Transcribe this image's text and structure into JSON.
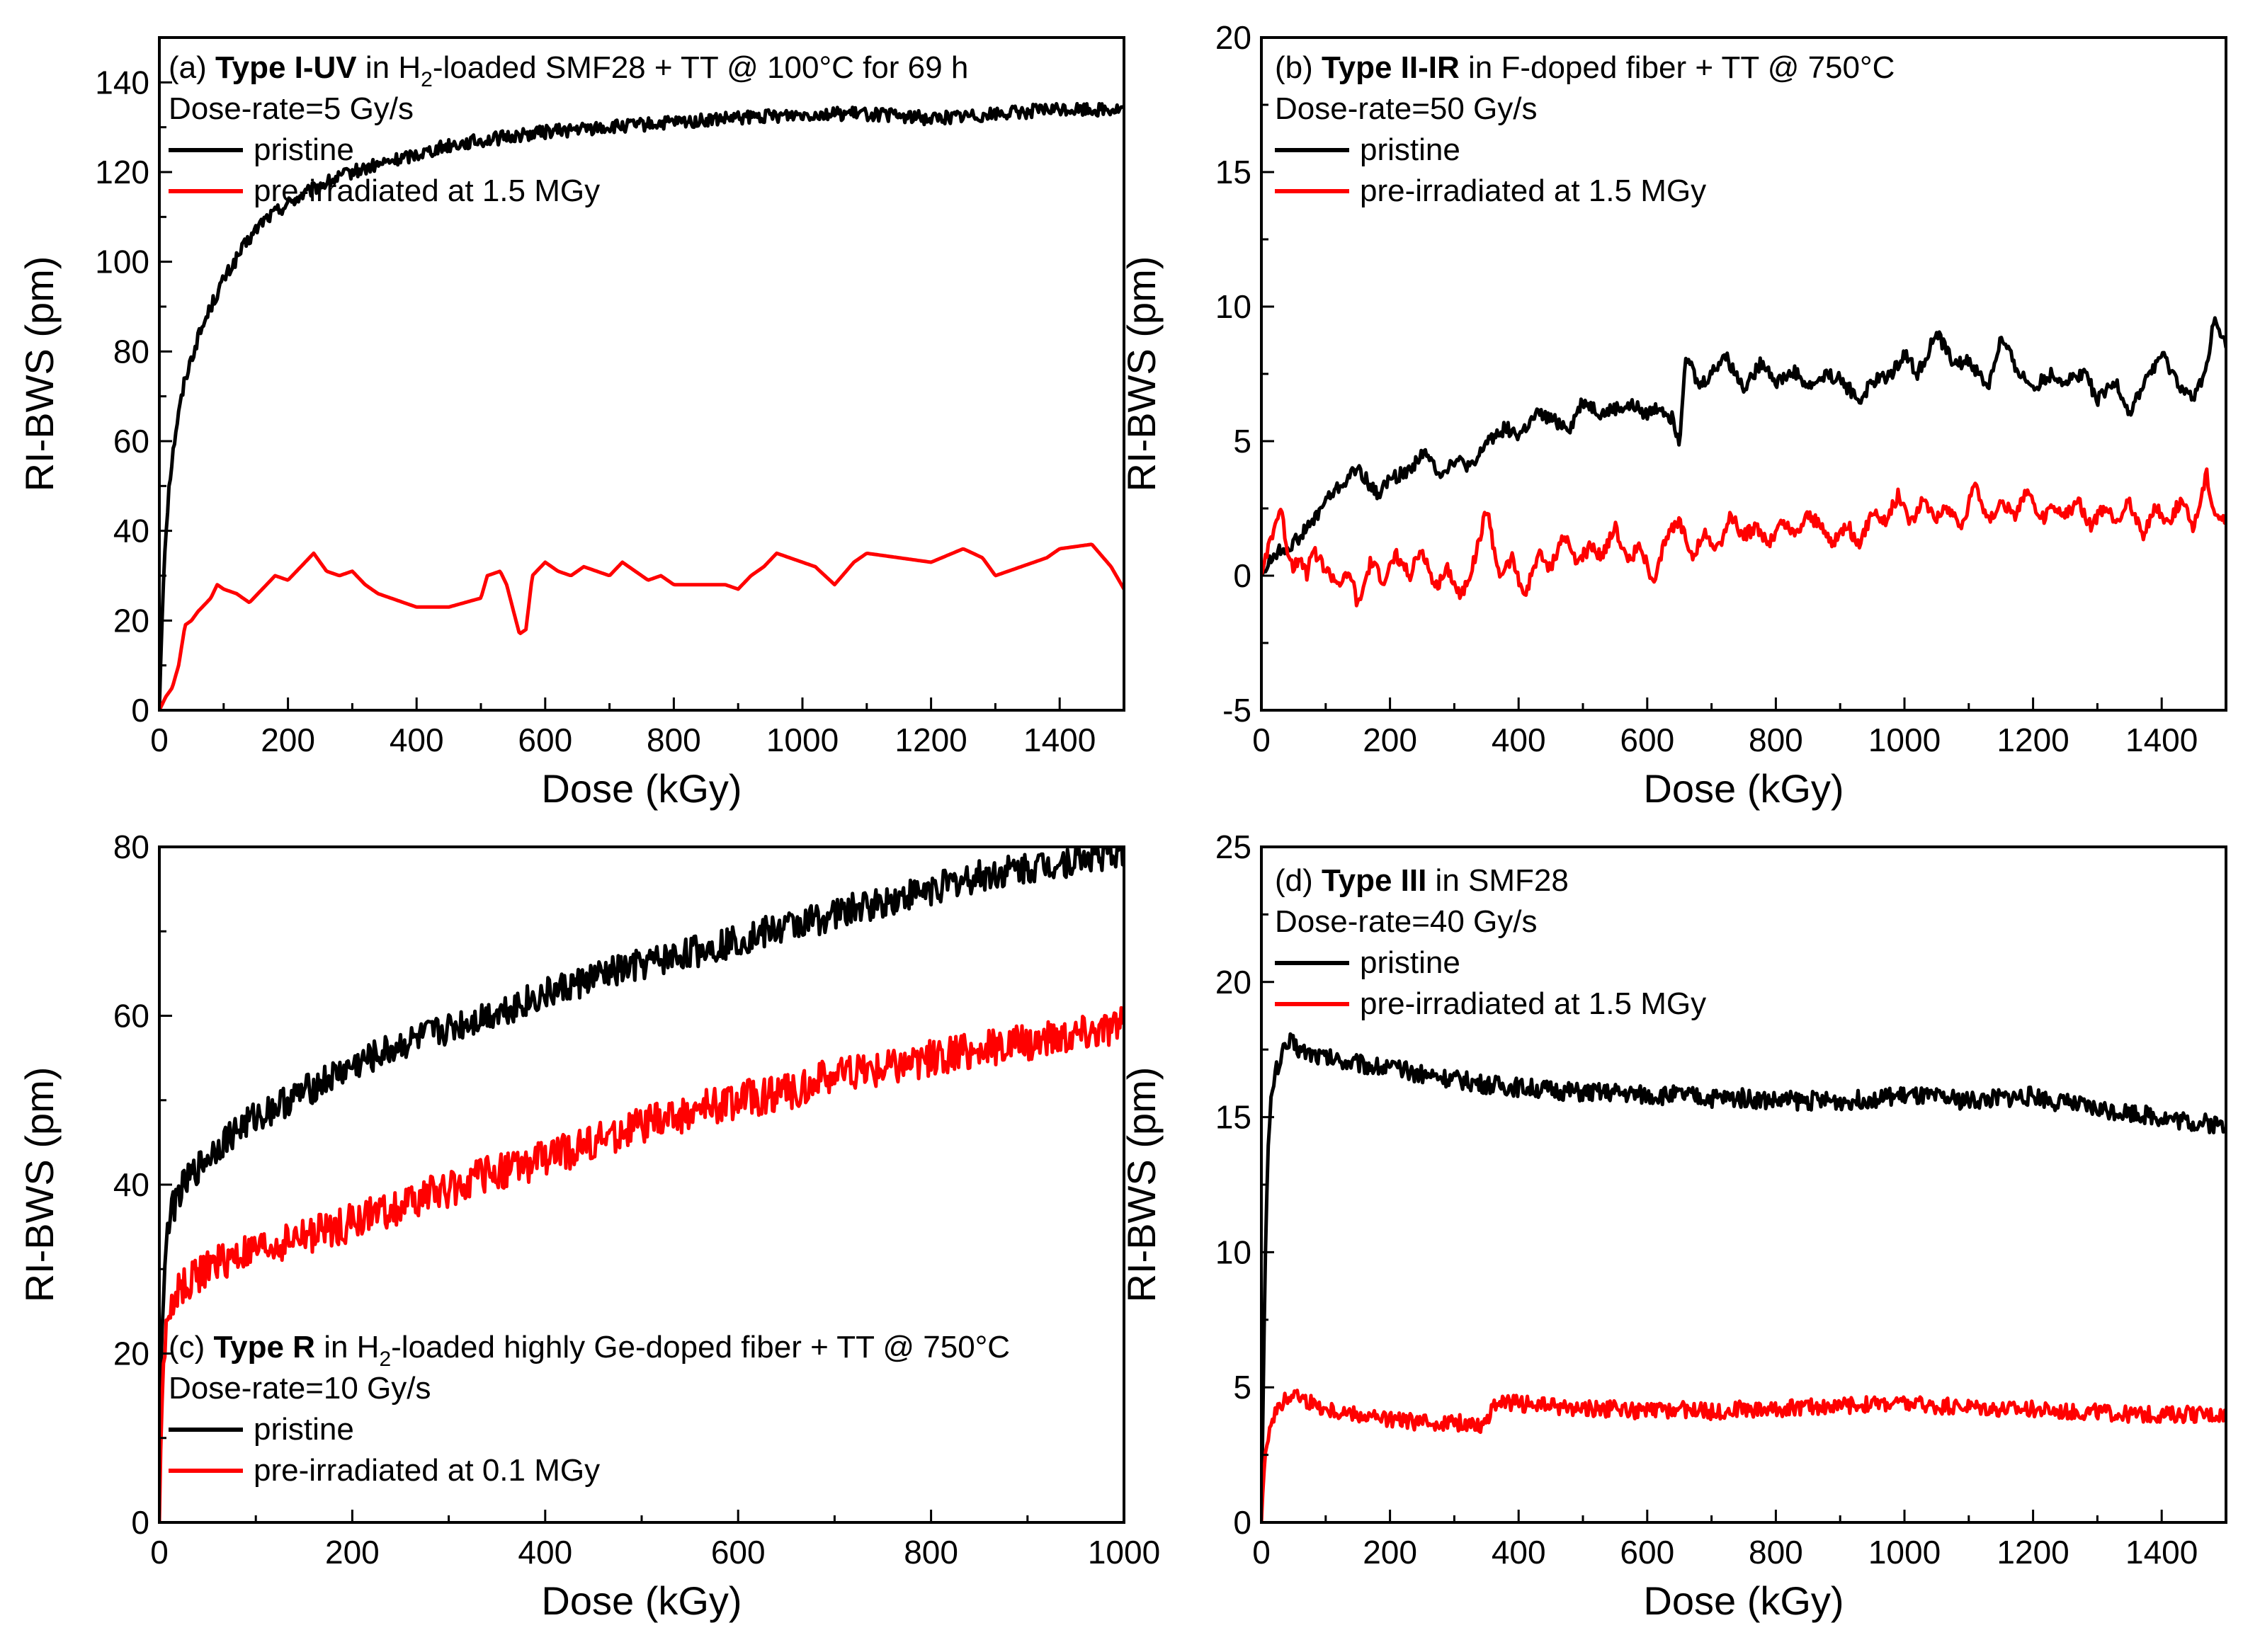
{
  "chart_data": [
    {
      "type": "line",
      "panel": "(a)",
      "title_bold": "Type I-UV",
      "title_rest_before_sub": "in H",
      "title_sub": "2",
      "title_rest_after_sub": "-loaded SMF28 + TT @ 100°C for 69 h",
      "dose_rate": "Dose-rate=5 Gy/s",
      "xlabel": "Dose (kGy)",
      "ylabel": "RI-BWS (pm)",
      "xlim": [
        0,
        1500
      ],
      "ylim": [
        0,
        150
      ],
      "xticks": [
        0,
        200,
        400,
        600,
        800,
        1000,
        1200,
        1400
      ],
      "yticks": [
        0,
        20,
        40,
        60,
        80,
        100,
        120,
        140
      ],
      "legend_position": "top-left",
      "series": [
        {
          "name": "pristine",
          "color": "#000000",
          "x": [
            0,
            3,
            8,
            15,
            25,
            40,
            60,
            80,
            100,
            130,
            160,
            200,
            250,
            300,
            350,
            400,
            450,
            500,
            600,
            700,
            800,
            900,
            1000,
            1100,
            1200,
            1300,
            1400,
            1500
          ],
          "y": [
            0,
            15,
            35,
            50,
            62,
            74,
            83,
            90,
            96,
            103,
            109,
            113,
            117,
            120,
            122,
            124,
            126,
            127,
            129,
            130,
            131,
            132,
            133,
            133,
            132,
            133,
            134,
            134
          ]
        },
        {
          "name": "pre-irradiated at 1.5 MGy",
          "color": "#ff0000",
          "x": [
            0,
            10,
            20,
            30,
            40,
            50,
            60,
            80,
            90,
            100,
            120,
            140,
            160,
            180,
            200,
            220,
            240,
            260,
            280,
            300,
            320,
            340,
            360,
            380,
            400,
            450,
            500,
            510,
            530,
            540,
            560,
            570,
            580,
            600,
            620,
            640,
            660,
            680,
            700,
            720,
            740,
            760,
            780,
            800,
            850,
            880,
            900,
            920,
            940,
            960,
            980,
            1000,
            1020,
            1050,
            1080,
            1100,
            1150,
            1200,
            1250,
            1280,
            1300,
            1340,
            1380,
            1400,
            1450,
            1480,
            1500
          ],
          "y": [
            0,
            3,
            5,
            10,
            19,
            20,
            22,
            25,
            28,
            27,
            26,
            24,
            27,
            30,
            29,
            32,
            35,
            31,
            30,
            31,
            28,
            26,
            25,
            24,
            23,
            23,
            25,
            30,
            31,
            28,
            17,
            18,
            30,
            33,
            31,
            30,
            32,
            31,
            30,
            33,
            31,
            29,
            30,
            28,
            28,
            28,
            27,
            30,
            32,
            35,
            34,
            33,
            32,
            28,
            33,
            35,
            34,
            33,
            36,
            34,
            30,
            32,
            34,
            36,
            37,
            32,
            27
          ]
        }
      ]
    },
    {
      "type": "line",
      "panel": "(b)",
      "title_bold": "Type II-IR",
      "title_rest": "in F-doped fiber + TT @ 750°C",
      "dose_rate": "Dose-rate=50 Gy/s",
      "xlabel": "Dose (kGy)",
      "ylabel": "RI-BWS (pm)",
      "xlim": [
        0,
        1500
      ],
      "ylim": [
        -5,
        20
      ],
      "xticks": [
        0,
        200,
        400,
        600,
        800,
        1000,
        1200,
        1400
      ],
      "yticks": [
        -5,
        0,
        5,
        10,
        15,
        20
      ],
      "legend_position": "top-left",
      "series": [
        {
          "name": "pristine",
          "color": "#000000",
          "x": [
            0,
            20,
            50,
            80,
            100,
            130,
            150,
            180,
            200,
            230,
            250,
            280,
            300,
            330,
            350,
            380,
            400,
            430,
            450,
            480,
            500,
            530,
            550,
            580,
            600,
            620,
            640,
            650,
            660,
            680,
            700,
            720,
            750,
            780,
            800,
            830,
            850,
            880,
            900,
            930,
            950,
            980,
            1000,
            1020,
            1050,
            1080,
            1100,
            1130,
            1150,
            1180,
            1200,
            1230,
            1250,
            1280,
            1300,
            1330,
            1350,
            1380,
            1400,
            1430,
            1450,
            1470,
            1480,
            1490,
            1500
          ],
          "y": [
            0,
            0.8,
            1.2,
            2.0,
            2.8,
            3.5,
            4.0,
            3.0,
            3.6,
            3.9,
            4.6,
            3.8,
            4.3,
            4.0,
            5.0,
            5.5,
            5.2,
            6.0,
            5.8,
            5.5,
            6.5,
            6.0,
            6.2,
            6.3,
            6.0,
            6.3,
            5.8,
            5.0,
            8.3,
            7.0,
            7.5,
            8.2,
            7.0,
            8.0,
            7.2,
            7.6,
            7.0,
            7.5,
            7.3,
            6.5,
            7.2,
            7.5,
            8.3,
            7.5,
            9.0,
            7.8,
            8.0,
            7.0,
            8.8,
            7.5,
            7.0,
            7.5,
            7.2,
            7.6,
            6.5,
            7.2,
            6.0,
            7.5,
            8.2,
            7.0,
            6.5,
            7.8,
            9.5,
            9.0,
            8.5
          ]
        },
        {
          "name": "pre-irradiated at 1.5 MGy",
          "color": "#ff0000",
          "x": [
            0,
            10,
            20,
            30,
            40,
            50,
            60,
            70,
            80,
            100,
            120,
            140,
            150,
            170,
            190,
            210,
            230,
            250,
            270,
            290,
            310,
            330,
            350,
            370,
            390,
            410,
            430,
            450,
            470,
            490,
            510,
            530,
            550,
            570,
            590,
            610,
            630,
            650,
            670,
            690,
            710,
            730,
            750,
            770,
            790,
            810,
            830,
            850,
            870,
            890,
            910,
            930,
            950,
            970,
            990,
            1010,
            1030,
            1050,
            1070,
            1090,
            1110,
            1130,
            1150,
            1170,
            1190,
            1210,
            1230,
            1250,
            1270,
            1290,
            1310,
            1330,
            1350,
            1370,
            1390,
            1410,
            1430,
            1450,
            1470,
            1480,
            1490,
            1500
          ],
          "y": [
            0,
            1.0,
            1.8,
            2.5,
            1.0,
            0.3,
            0.8,
            0.0,
            1.0,
            0.2,
            -0.3,
            0.0,
            -1.2,
            0.5,
            -0.2,
            0.8,
            0.0,
            1.0,
            -0.5,
            0.3,
            -0.8,
            0.5,
            2.5,
            0.0,
            0.6,
            -0.8,
            0.8,
            0.3,
            1.5,
            0.5,
            1.0,
            0.8,
            1.8,
            0.5,
            1.2,
            -0.5,
            1.5,
            2.0,
            0.8,
            1.5,
            1.0,
            2.2,
            1.5,
            1.8,
            1.2,
            2.0,
            1.5,
            2.3,
            1.8,
            1.2,
            2.0,
            1.0,
            2.5,
            2.0,
            3.0,
            2.0,
            2.8,
            2.2,
            2.5,
            1.8,
            3.5,
            2.0,
            2.8,
            2.2,
            3.2,
            2.0,
            2.5,
            2.2,
            2.8,
            1.8,
            2.5,
            2.0,
            2.8,
            1.5,
            2.5,
            2.0,
            2.8,
            1.8,
            3.8,
            2.5,
            2.2,
            2.0
          ]
        }
      ]
    },
    {
      "type": "line",
      "panel": "(c)",
      "title_bold": "Type R",
      "title_rest_before_sub": "in H",
      "title_sub": "2",
      "title_rest_after_sub": "-loaded highly Ge-doped fiber + TT @ 750°C",
      "dose_rate": "Dose-rate=10 Gy/s",
      "xlabel": "Dose (kGy)",
      "ylabel": "RI-BWS (pm)",
      "xlim": [
        0,
        1000
      ],
      "ylim": [
        0,
        80
      ],
      "xticks": [
        0,
        200,
        400,
        600,
        800,
        1000
      ],
      "yticks": [
        0,
        20,
        40,
        60,
        80
      ],
      "legend_position": "bottom-left",
      "series": [
        {
          "name": "pristine",
          "color": "#000000",
          "x": [
            0,
            2,
            5,
            10,
            20,
            40,
            60,
            80,
            100,
            150,
            200,
            250,
            300,
            350,
            400,
            450,
            500,
            550,
            600,
            650,
            700,
            750,
            800,
            850,
            900,
            950,
            1000
          ],
          "y": [
            10,
            20,
            30,
            36,
            39,
            42,
            44.5,
            46.5,
            48,
            51,
            54,
            56.5,
            58.5,
            60.5,
            62.5,
            64.5,
            66,
            67.5,
            69,
            70.5,
            72,
            73.5,
            75,
            76.5,
            77.5,
            78.5,
            79.5
          ]
        },
        {
          "name": "pre-irradiated at 0.1 MGy",
          "color": "#ff0000",
          "x": [
            0,
            2,
            5,
            10,
            20,
            40,
            60,
            80,
            100,
            150,
            200,
            250,
            300,
            350,
            400,
            450,
            500,
            550,
            600,
            650,
            700,
            750,
            800,
            850,
            900,
            950,
            1000
          ],
          "y": [
            0,
            12,
            20,
            25,
            27.5,
            29.5,
            30.5,
            31.5,
            32,
            34,
            35.5,
            37.5,
            39.5,
            41.5,
            43,
            45,
            47,
            48.5,
            50,
            51,
            53,
            54,
            55,
            56,
            57,
            58,
            59
          ]
        }
      ]
    },
    {
      "type": "line",
      "panel": "(d)",
      "title_bold": "Type III",
      "title_rest": "in SMF28",
      "dose_rate": "Dose-rate=40 Gy/s",
      "xlabel": "Dose (kGy)",
      "ylabel": "RI-BWS (pm)",
      "xlim": [
        0,
        1500
      ],
      "ylim": [
        0,
        25
      ],
      "xticks": [
        0,
        200,
        400,
        600,
        800,
        1000,
        1200,
        1400
      ],
      "yticks": [
        0,
        5,
        10,
        15,
        20,
        25
      ],
      "legend_position": "top-left",
      "series": [
        {
          "name": "pristine",
          "color": "#000000",
          "x": [
            0,
            3,
            6,
            10,
            15,
            20,
            30,
            45,
            60,
            100,
            150,
            200,
            250,
            300,
            350,
            400,
            450,
            500,
            550,
            600,
            650,
            700,
            750,
            800,
            850,
            900,
            950,
            1000,
            1050,
            1100,
            1150,
            1200,
            1250,
            1300,
            1350,
            1400,
            1450,
            1500
          ],
          "y": [
            0,
            5,
            10,
            13.5,
            15.5,
            16.5,
            17.2,
            17.8,
            17.5,
            17.2,
            17.0,
            16.8,
            16.6,
            16.4,
            16.2,
            16.1,
            16.0,
            15.9,
            15.9,
            15.8,
            15.8,
            15.7,
            15.7,
            15.6,
            15.6,
            15.6,
            15.7,
            15.8,
            15.7,
            15.6,
            15.7,
            15.8,
            15.5,
            15.3,
            15.2,
            15.0,
            14.8,
            14.7
          ]
        },
        {
          "name": "pre-irradiated at 1.5 MGy",
          "color": "#ff0000",
          "x": [
            0,
            3,
            6,
            10,
            15,
            20,
            30,
            40,
            50,
            70,
            100,
            150,
            200,
            250,
            300,
            350,
            360,
            370,
            400,
            450,
            500,
            550,
            600,
            650,
            700,
            750,
            800,
            850,
            900,
            950,
            1000,
            1050,
            1100,
            1150,
            1200,
            1250,
            1300,
            1350,
            1400,
            1450,
            1500
          ],
          "y": [
            0,
            1.5,
            2.5,
            3.2,
            3.8,
            4.0,
            4.3,
            4.6,
            4.8,
            4.5,
            4.2,
            4.0,
            3.8,
            3.7,
            3.7,
            3.6,
            4.5,
            4.4,
            4.4,
            4.3,
            4.2,
            4.2,
            4.1,
            4.2,
            4.1,
            4.2,
            4.2,
            4.3,
            4.3,
            4.4,
            4.4,
            4.3,
            4.3,
            4.2,
            4.2,
            4.1,
            4.1,
            4.0,
            4.0,
            4.0,
            4.0
          ]
        }
      ]
    }
  ]
}
